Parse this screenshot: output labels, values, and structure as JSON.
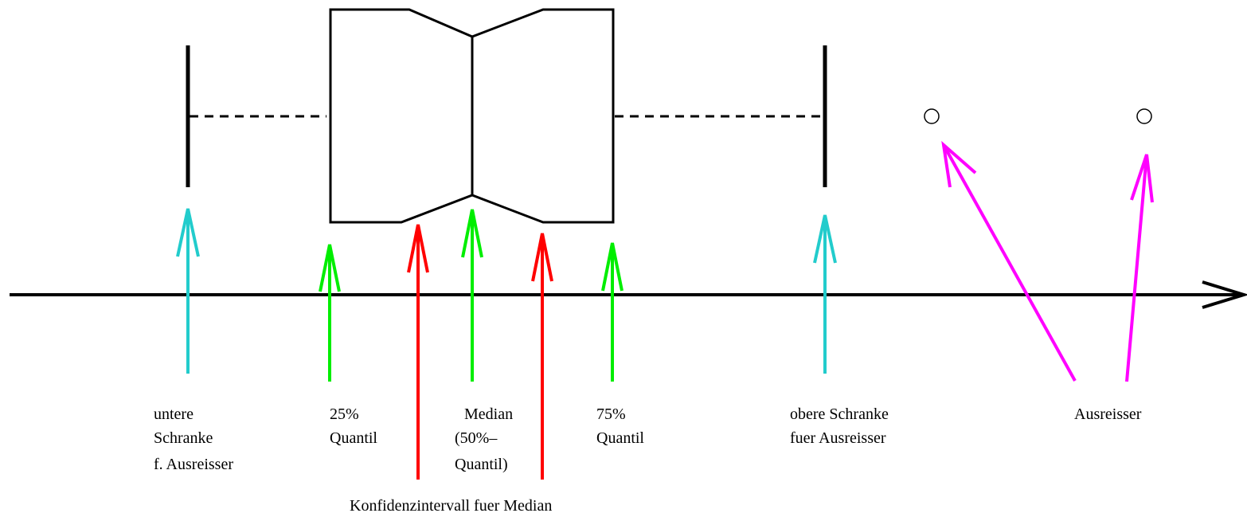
{
  "colors": {
    "outline": "#000000",
    "whisker_arrow": "#22cccc",
    "quantile_arrow": "#00ee00",
    "confidence_arrow": "#ff0000",
    "outlier_arrow": "#ff00ff"
  },
  "labels": {
    "lower_bound": [
      "untere",
      "Schranke",
      "f. Ausreisser"
    ],
    "q25": [
      "25%",
      "Quantil"
    ],
    "median": [
      "Median",
      "(50%–",
      "Quantil)"
    ],
    "q75": [
      "75%",
      "Quantil"
    ],
    "upper_bound": [
      "obere Schranke",
      "fuer Ausreisser"
    ],
    "outliers": [
      "Ausreisser"
    ],
    "confidence_interval": [
      "Konfidenzintervall fuer Median"
    ]
  }
}
